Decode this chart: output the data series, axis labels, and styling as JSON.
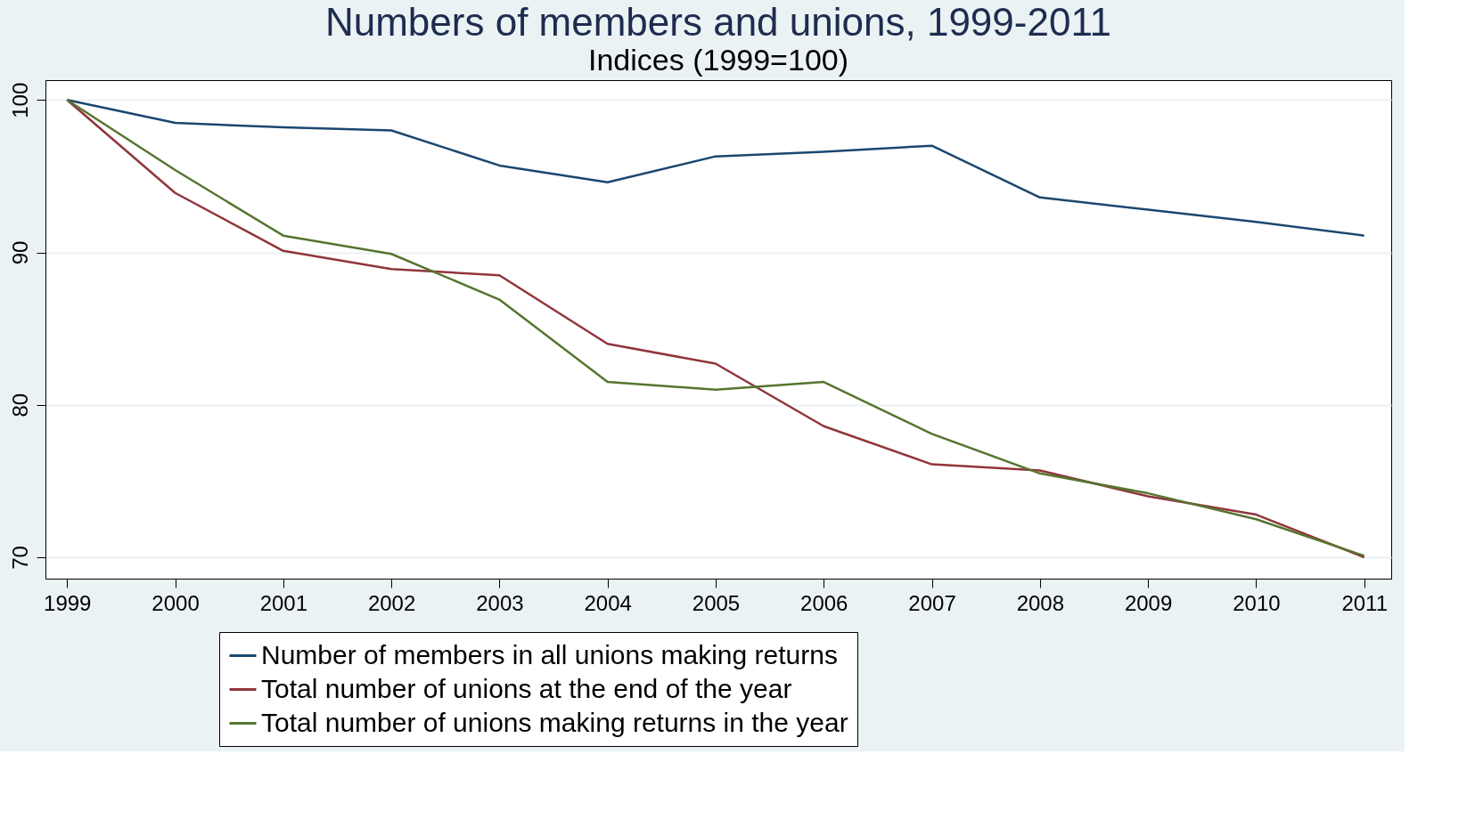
{
  "chart_data": {
    "type": "line",
    "title": "Numbers of members and unions, 1999-2011",
    "subtitle": "Indices (1999=100)",
    "x": [
      1999,
      2000,
      2001,
      2002,
      2003,
      2004,
      2005,
      2006,
      2007,
      2008,
      2009,
      2010,
      2011
    ],
    "series": [
      {
        "name": "Number of members in all unions making returns",
        "color": "#1a476f",
        "values": [
          100,
          98.5,
          98.2,
          98.0,
          95.7,
          94.6,
          96.3,
          96.6,
          97.0,
          93.6,
          92.8,
          92.0,
          91.1
        ]
      },
      {
        "name": "Total number of unions at the end of the year",
        "color": "#90353b",
        "values": [
          100,
          93.9,
          90.1,
          88.9,
          88.5,
          84.0,
          82.7,
          78.6,
          76.1,
          75.7,
          74.0,
          72.8,
          70.0
        ]
      },
      {
        "name": "Total number of unions making returns in the year",
        "color": "#55752f",
        "values": [
          100,
          95.4,
          91.1,
          89.9,
          86.9,
          81.5,
          81.0,
          81.5,
          78.1,
          75.5,
          74.2,
          72.5,
          70.1
        ]
      }
    ],
    "xlim": [
      1998.8,
      2011.25
    ],
    "xticks": [
      1999,
      2000,
      2001,
      2002,
      2003,
      2004,
      2005,
      2006,
      2007,
      2008,
      2009,
      2010,
      2011
    ],
    "ylim": [
      68.6,
      101.3
    ],
    "yticks": [
      70,
      80,
      90,
      100
    ],
    "grid": "y",
    "legend": "bottom",
    "marker": "none",
    "line_style": "solid"
  }
}
